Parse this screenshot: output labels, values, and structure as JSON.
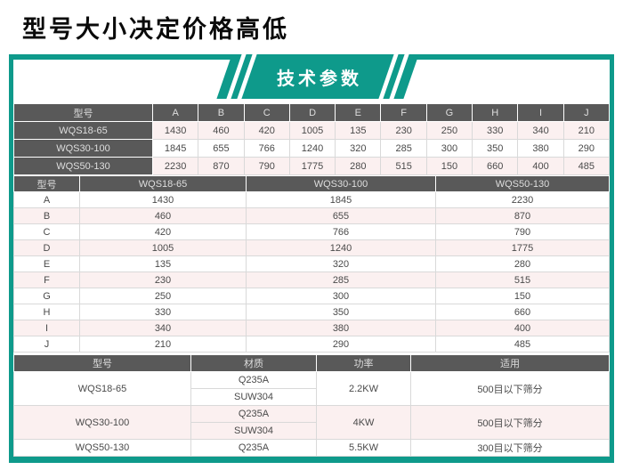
{
  "page_title": "型号大小决定价格高低",
  "banner": {
    "label": "技术参数"
  },
  "colors": {
    "teal": "#0e9a8b",
    "header_gray": "#595959",
    "row_pink": "#fbf0f0",
    "cell_text": "#4a4a4a"
  },
  "tables": {
    "by_column": {
      "header": [
        "型号",
        "A",
        "B",
        "C",
        "D",
        "E",
        "F",
        "G",
        "H",
        "I",
        "J"
      ],
      "rows": [
        {
          "model": "WQS18-65",
          "pink": true,
          "values": [
            1430,
            460,
            420,
            1005,
            135,
            230,
            250,
            330,
            340,
            210
          ]
        },
        {
          "model": "WQS30-100",
          "pink": false,
          "values": [
            1845,
            655,
            766,
            1240,
            320,
            285,
            300,
            350,
            380,
            290
          ]
        },
        {
          "model": "WQS50-130",
          "pink": true,
          "values": [
            2230,
            870,
            790,
            1775,
            280,
            515,
            150,
            660,
            400,
            485
          ]
        }
      ]
    },
    "by_row": {
      "header": [
        "型号",
        "WQS18-65",
        "WQS30-100",
        "WQS50-130"
      ],
      "rows": [
        {
          "dim": "A",
          "pink": false,
          "values": [
            1430,
            1845,
            2230
          ]
        },
        {
          "dim": "B",
          "pink": true,
          "values": [
            460,
            655,
            870
          ]
        },
        {
          "dim": "C",
          "pink": false,
          "values": [
            420,
            766,
            790
          ]
        },
        {
          "dim": "D",
          "pink": true,
          "values": [
            1005,
            1240,
            1775
          ]
        },
        {
          "dim": "E",
          "pink": false,
          "values": [
            135,
            320,
            280
          ]
        },
        {
          "dim": "F",
          "pink": true,
          "values": [
            230,
            285,
            515
          ]
        },
        {
          "dim": "G",
          "pink": false,
          "values": [
            250,
            300,
            150
          ]
        },
        {
          "dim": "H",
          "pink": false,
          "values": [
            330,
            350,
            660
          ]
        },
        {
          "dim": "I",
          "pink": true,
          "values": [
            340,
            380,
            400
          ]
        },
        {
          "dim": "J",
          "pink": false,
          "values": [
            210,
            290,
            485
          ]
        }
      ]
    },
    "specs": {
      "header": [
        "型号",
        "材质",
        "功率",
        "适用"
      ],
      "rows": [
        {
          "model": "WQS18-65",
          "pink": false,
          "materials": [
            "Q235A",
            "SUW304"
          ],
          "power": "2.2KW",
          "application": "500目以下筛分"
        },
        {
          "model": "WQS30-100",
          "pink": true,
          "materials": [
            "Q235A",
            "SUW304"
          ],
          "power": "4KW",
          "application": "500目以下筛分"
        },
        {
          "model": "WQS50-130",
          "pink": false,
          "materials": [
            "Q235A"
          ],
          "power": "5.5KW",
          "application": "300目以下筛分"
        }
      ]
    }
  }
}
